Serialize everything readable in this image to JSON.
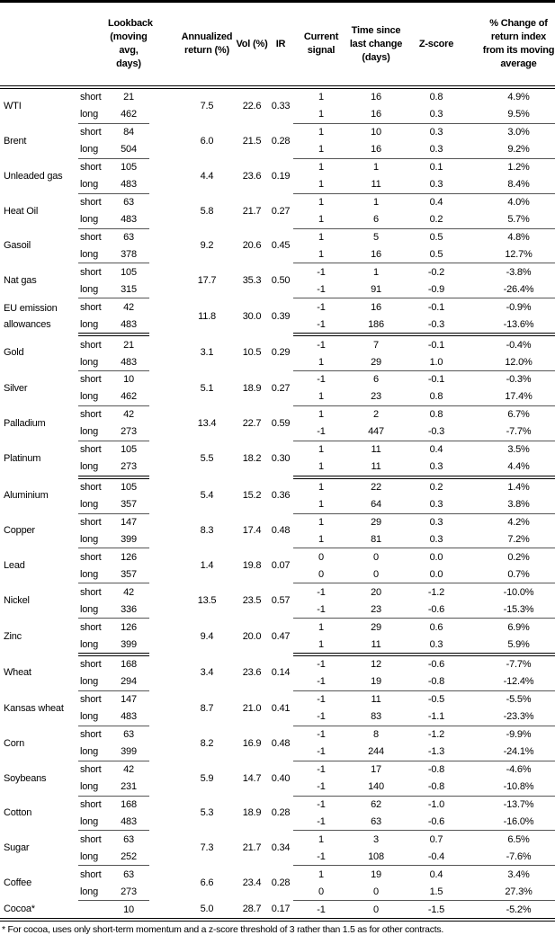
{
  "headers": {
    "lookback": "Lookback (moving avg, days)",
    "annualized": "Annualized return (%)",
    "vol": "Vol (%)",
    "ir": "IR",
    "signal": "Current signal",
    "time": "Time since last change (days)",
    "z": "Z-score",
    "pct": "% Change of return index from its moving average"
  },
  "groups": [
    [
      {
        "name": "WTI",
        "ann": "7.5",
        "vol": "22.6",
        "ir": "0.33",
        "rows": [
          {
            "type": "short",
            "lookback": "21",
            "signal": "1",
            "time": "16",
            "z": "0.8",
            "pct": "4.9%"
          },
          {
            "type": "long",
            "lookback": "462",
            "signal": "1",
            "time": "16",
            "z": "0.3",
            "pct": "9.5%"
          }
        ]
      },
      {
        "name": "Brent",
        "ann": "6.0",
        "vol": "21.5",
        "ir": "0.28",
        "rows": [
          {
            "type": "short",
            "lookback": "84",
            "signal": "1",
            "time": "10",
            "z": "0.3",
            "pct": "3.0%"
          },
          {
            "type": "long",
            "lookback": "504",
            "signal": "1",
            "time": "16",
            "z": "0.3",
            "pct": "9.2%"
          }
        ]
      },
      {
        "name": "Unleaded gas",
        "ann": "4.4",
        "vol": "23.6",
        "ir": "0.19",
        "rows": [
          {
            "type": "short",
            "lookback": "105",
            "signal": "1",
            "time": "1",
            "z": "0.1",
            "pct": "1.2%"
          },
          {
            "type": "long",
            "lookback": "483",
            "signal": "1",
            "time": "11",
            "z": "0.3",
            "pct": "8.4%"
          }
        ]
      },
      {
        "name": "Heat Oil",
        "ann": "5.8",
        "vol": "21.7",
        "ir": "0.27",
        "rows": [
          {
            "type": "short",
            "lookback": "63",
            "signal": "1",
            "time": "1",
            "z": "0.4",
            "pct": "4.0%"
          },
          {
            "type": "long",
            "lookback": "483",
            "signal": "1",
            "time": "6",
            "z": "0.2",
            "pct": "5.7%"
          }
        ]
      },
      {
        "name": "Gasoil",
        "ann": "9.2",
        "vol": "20.6",
        "ir": "0.45",
        "rows": [
          {
            "type": "short",
            "lookback": "63",
            "signal": "1",
            "time": "5",
            "z": "0.5",
            "pct": "4.8%"
          },
          {
            "type": "long",
            "lookback": "378",
            "signal": "1",
            "time": "16",
            "z": "0.5",
            "pct": "12.7%"
          }
        ]
      },
      {
        "name": "Nat gas",
        "ann": "17.7",
        "vol": "35.3",
        "ir": "0.50",
        "rows": [
          {
            "type": "short",
            "lookback": "105",
            "signal": "-1",
            "time": "1",
            "z": "-0.2",
            "pct": "-3.8%"
          },
          {
            "type": "long",
            "lookback": "315",
            "signal": "-1",
            "time": "91",
            "z": "-0.9",
            "pct": "-26.4%"
          }
        ]
      },
      {
        "name": "EU emission allowances",
        "ann": "11.8",
        "vol": "30.0",
        "ir": "0.39",
        "rows": [
          {
            "type": "short",
            "lookback": "42",
            "signal": "-1",
            "time": "16",
            "z": "-0.1",
            "pct": "-0.9%"
          },
          {
            "type": "long",
            "lookback": "483",
            "signal": "-1",
            "time": "186",
            "z": "-0.3",
            "pct": "-13.6%"
          }
        ]
      }
    ],
    [
      {
        "name": "Gold",
        "ann": "3.1",
        "vol": "10.5",
        "ir": "0.29",
        "rows": [
          {
            "type": "short",
            "lookback": "21",
            "signal": "-1",
            "time": "7",
            "z": "-0.1",
            "pct": "-0.4%"
          },
          {
            "type": "long",
            "lookback": "483",
            "signal": "1",
            "time": "29",
            "z": "1.0",
            "pct": "12.0%"
          }
        ]
      },
      {
        "name": "Silver",
        "ann": "5.1",
        "vol": "18.9",
        "ir": "0.27",
        "rows": [
          {
            "type": "short",
            "lookback": "10",
            "signal": "-1",
            "time": "6",
            "z": "-0.1",
            "pct": "-0.3%"
          },
          {
            "type": "long",
            "lookback": "462",
            "signal": "1",
            "time": "23",
            "z": "0.8",
            "pct": "17.4%"
          }
        ]
      },
      {
        "name": "Palladium",
        "ann": "13.4",
        "vol": "22.7",
        "ir": "0.59",
        "rows": [
          {
            "type": "short",
            "lookback": "42",
            "signal": "1",
            "time": "2",
            "z": "0.8",
            "pct": "6.7%"
          },
          {
            "type": "long",
            "lookback": "273",
            "signal": "-1",
            "time": "447",
            "z": "-0.3",
            "pct": "-7.7%"
          }
        ]
      },
      {
        "name": "Platinum",
        "ann": "5.5",
        "vol": "18.2",
        "ir": "0.30",
        "rows": [
          {
            "type": "short",
            "lookback": "105",
            "signal": "1",
            "time": "11",
            "z": "0.4",
            "pct": "3.5%"
          },
          {
            "type": "long",
            "lookback": "273",
            "signal": "1",
            "time": "11",
            "z": "0.3",
            "pct": "4.4%"
          }
        ]
      }
    ],
    [
      {
        "name": "Aluminium",
        "ann": "5.4",
        "vol": "15.2",
        "ir": "0.36",
        "rows": [
          {
            "type": "short",
            "lookback": "105",
            "signal": "1",
            "time": "22",
            "z": "0.2",
            "pct": "1.4%"
          },
          {
            "type": "long",
            "lookback": "357",
            "signal": "1",
            "time": "64",
            "z": "0.3",
            "pct": "3.8%"
          }
        ]
      },
      {
        "name": "Copper",
        "ann": "8.3",
        "vol": "17.4",
        "ir": "0.48",
        "rows": [
          {
            "type": "short",
            "lookback": "147",
            "signal": "1",
            "time": "29",
            "z": "0.3",
            "pct": "4.2%"
          },
          {
            "type": "long",
            "lookback": "399",
            "signal": "1",
            "time": "81",
            "z": "0.3",
            "pct": "7.2%"
          }
        ]
      },
      {
        "name": "Lead",
        "ann": "1.4",
        "vol": "19.8",
        "ir": "0.07",
        "rows": [
          {
            "type": "short",
            "lookback": "126",
            "signal": "0",
            "time": "0",
            "z": "0.0",
            "pct": "0.2%"
          },
          {
            "type": "long",
            "lookback": "357",
            "signal": "0",
            "time": "0",
            "z": "0.0",
            "pct": "0.7%"
          }
        ]
      },
      {
        "name": "Nickel",
        "ann": "13.5",
        "vol": "23.5",
        "ir": "0.57",
        "rows": [
          {
            "type": "short",
            "lookback": "42",
            "signal": "-1",
            "time": "20",
            "z": "-1.2",
            "pct": "-10.0%"
          },
          {
            "type": "long",
            "lookback": "336",
            "signal": "-1",
            "time": "23",
            "z": "-0.6",
            "pct": "-15.3%"
          }
        ]
      },
      {
        "name": "Zinc",
        "ann": "9.4",
        "vol": "20.0",
        "ir": "0.47",
        "rows": [
          {
            "type": "short",
            "lookback": "126",
            "signal": "1",
            "time": "29",
            "z": "0.6",
            "pct": "6.9%"
          },
          {
            "type": "long",
            "lookback": "399",
            "signal": "1",
            "time": "11",
            "z": "0.3",
            "pct": "5.9%"
          }
        ]
      }
    ],
    [
      {
        "name": "Wheat",
        "ann": "3.4",
        "vol": "23.6",
        "ir": "0.14",
        "rows": [
          {
            "type": "short",
            "lookback": "168",
            "signal": "-1",
            "time": "12",
            "z": "-0.6",
            "pct": "-7.7%"
          },
          {
            "type": "long",
            "lookback": "294",
            "signal": "-1",
            "time": "19",
            "z": "-0.8",
            "pct": "-12.4%"
          }
        ]
      },
      {
        "name": "Kansas wheat",
        "ann": "8.7",
        "vol": "21.0",
        "ir": "0.41",
        "rows": [
          {
            "type": "short",
            "lookback": "147",
            "signal": "-1",
            "time": "11",
            "z": "-0.5",
            "pct": "-5.5%"
          },
          {
            "type": "long",
            "lookback": "483",
            "signal": "-1",
            "time": "83",
            "z": "-1.1",
            "pct": "-23.3%"
          }
        ]
      },
      {
        "name": "Corn",
        "ann": "8.2",
        "vol": "16.9",
        "ir": "0.48",
        "rows": [
          {
            "type": "short",
            "lookback": "63",
            "signal": "-1",
            "time": "8",
            "z": "-1.2",
            "pct": "-9.9%"
          },
          {
            "type": "long",
            "lookback": "399",
            "signal": "-1",
            "time": "244",
            "z": "-1.3",
            "pct": "-24.1%"
          }
        ]
      },
      {
        "name": "Soybeans",
        "ann": "5.9",
        "vol": "14.7",
        "ir": "0.40",
        "rows": [
          {
            "type": "short",
            "lookback": "42",
            "signal": "-1",
            "time": "17",
            "z": "-0.8",
            "pct": "-4.6%"
          },
          {
            "type": "long",
            "lookback": "231",
            "signal": "-1",
            "time": "140",
            "z": "-0.8",
            "pct": "-10.8%"
          }
        ]
      },
      {
        "name": "Cotton",
        "ann": "5.3",
        "vol": "18.9",
        "ir": "0.28",
        "rows": [
          {
            "type": "short",
            "lookback": "168",
            "signal": "-1",
            "time": "62",
            "z": "-1.0",
            "pct": "-13.7%"
          },
          {
            "type": "long",
            "lookback": "483",
            "signal": "-1",
            "time": "63",
            "z": "-0.6",
            "pct": "-16.0%"
          }
        ]
      },
      {
        "name": "Sugar",
        "ann": "7.3",
        "vol": "21.7",
        "ir": "0.34",
        "rows": [
          {
            "type": "short",
            "lookback": "63",
            "signal": "1",
            "time": "3",
            "z": "0.7",
            "pct": "6.5%"
          },
          {
            "type": "long",
            "lookback": "252",
            "signal": "-1",
            "time": "108",
            "z": "-0.4",
            "pct": "-7.6%"
          }
        ]
      },
      {
        "name": "Coffee",
        "ann": "6.6",
        "vol": "23.4",
        "ir": "0.28",
        "rows": [
          {
            "type": "short",
            "lookback": "63",
            "signal": "1",
            "time": "19",
            "z": "0.4",
            "pct": "3.4%"
          },
          {
            "type": "long",
            "lookback": "273",
            "signal": "0",
            "time": "0",
            "z": "1.5",
            "pct": "27.3%"
          }
        ]
      },
      {
        "name": "Cocoa*",
        "ann": "5.0",
        "vol": "28.7",
        "ir": "0.17",
        "rows": [
          {
            "type": "",
            "lookback": "10",
            "signal": "-1",
            "time": "0",
            "z": "-1.5",
            "pct": "-5.2%"
          }
        ]
      }
    ]
  ],
  "footnote": "* For cocoa, uses only short-term momentum and a z-score threshold of 3 rather than 1.5 as for other contracts."
}
